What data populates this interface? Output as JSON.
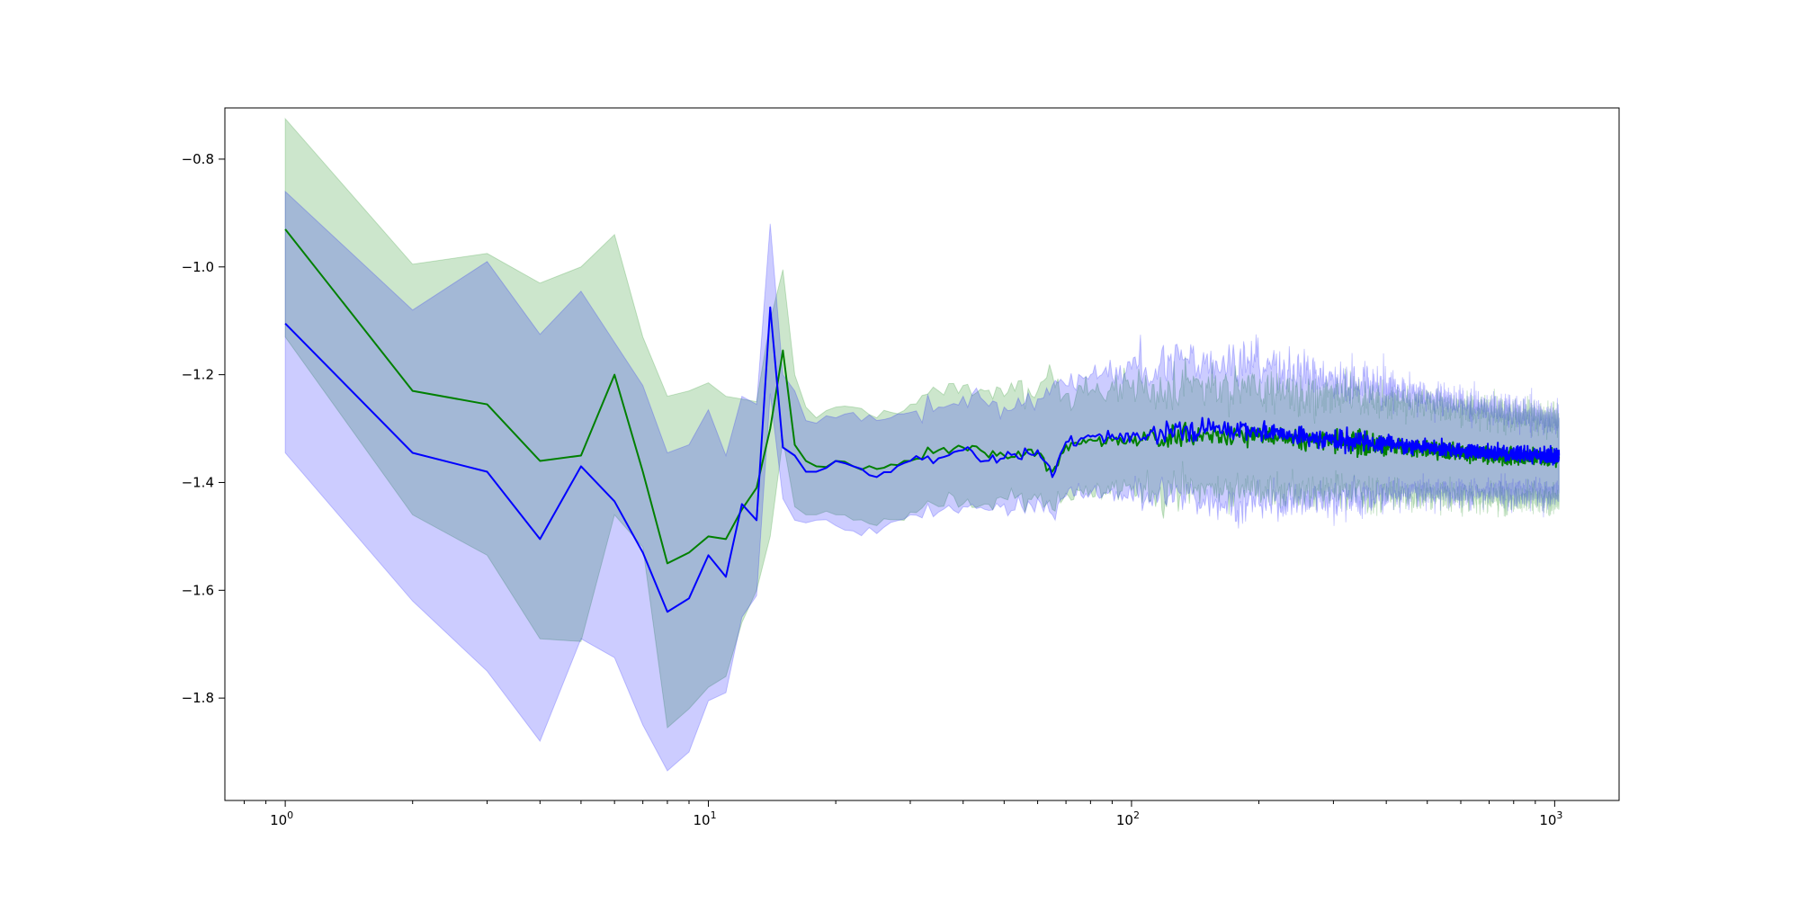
{
  "chart_data": {
    "type": "line",
    "title": "",
    "xlabel": "",
    "ylabel": "",
    "xscale": "log",
    "xlim": [
      0.72,
      1420
    ],
    "ylim": [
      -1.99,
      -0.705
    ],
    "grid": false,
    "legend": "none",
    "x_ticks": [
      {
        "value": 1,
        "base": "10",
        "exp": "0"
      },
      {
        "value": 10,
        "base": "10",
        "exp": "1"
      },
      {
        "value": 100,
        "base": "10",
        "exp": "2"
      },
      {
        "value": 1000,
        "base": "10",
        "exp": "3"
      }
    ],
    "y_ticks": [
      {
        "value": -0.8,
        "label": "−0.8"
      },
      {
        "value": -1.0,
        "label": "−1.0"
      },
      {
        "value": -1.2,
        "label": "−1.2"
      },
      {
        "value": -1.4,
        "label": "−1.4"
      },
      {
        "value": -1.6,
        "label": "−1.6"
      },
      {
        "value": -1.8,
        "label": "−1.8"
      }
    ],
    "series": [
      {
        "color": "#008000",
        "band_color": "#008000",
        "band_opacity": 0.2,
        "points": [
          {
            "x": 1,
            "y": -0.93,
            "lo": -1.13,
            "hi": -0.725
          },
          {
            "x": 2,
            "y": -1.23,
            "lo": -1.46,
            "hi": -0.995
          },
          {
            "x": 3,
            "y": -1.255,
            "lo": -1.535,
            "hi": -0.975
          },
          {
            "x": 4,
            "y": -1.36,
            "lo": -1.69,
            "hi": -1.03
          },
          {
            "x": 5,
            "y": -1.35,
            "lo": -1.695,
            "hi": -1.0
          },
          {
            "x": 6,
            "y": -1.2,
            "lo": -1.46,
            "hi": -0.94
          },
          {
            "x": 7,
            "y": -1.38,
            "lo": -1.52,
            "hi": -1.13
          },
          {
            "x": 8,
            "y": -1.55,
            "lo": -1.855,
            "hi": -1.24
          },
          {
            "x": 9,
            "y": -1.53,
            "lo": -1.82,
            "hi": -1.23
          },
          {
            "x": 10,
            "y": -1.5,
            "lo": -1.78,
            "hi": -1.215
          },
          {
            "x": 11,
            "y": -1.505,
            "lo": -1.76,
            "hi": -1.24
          },
          {
            "x": 12,
            "y": -1.45,
            "lo": -1.66,
            "hi": -1.245
          },
          {
            "x": 13,
            "y": -1.41,
            "lo": -1.6,
            "hi": -1.25
          },
          {
            "x": 14,
            "y": -1.3,
            "lo": -1.5,
            "hi": -1.1
          },
          {
            "x": 15,
            "y": -1.155,
            "lo": -1.32,
            "hi": -1.005
          },
          {
            "x": 16,
            "y": -1.33,
            "lo": -1.445,
            "hi": -1.2
          },
          {
            "x": 17,
            "y": -1.36,
            "lo": -1.46,
            "hi": -1.26
          },
          {
            "x": 18,
            "y": -1.37,
            "lo": -1.46,
            "hi": -1.28
          },
          {
            "x": 20,
            "y": -1.36,
            "lo": -1.46,
            "hi": -1.26
          },
          {
            "x": 22,
            "y": -1.37,
            "lo": -1.47,
            "hi": -1.26
          },
          {
            "x": 25,
            "y": -1.375,
            "lo": -1.48,
            "hi": -1.28
          },
          {
            "x": 30,
            "y": -1.36,
            "lo": -1.455,
            "hi": -1.255
          },
          {
            "x": 35,
            "y": -1.34,
            "lo": -1.445,
            "hi": -1.23
          },
          {
            "x": 40,
            "y": -1.335,
            "lo": -1.44,
            "hi": -1.22
          },
          {
            "x": 45,
            "y": -1.345,
            "lo": -1.44,
            "hi": -1.23
          },
          {
            "x": 50,
            "y": -1.35,
            "lo": -1.43,
            "hi": -1.24
          },
          {
            "x": 60,
            "y": -1.345,
            "lo": -1.43,
            "hi": -1.23
          },
          {
            "x": 65,
            "y": -1.38,
            "lo": -1.45,
            "hi": -1.2
          },
          {
            "x": 70,
            "y": -1.33,
            "lo": -1.42,
            "hi": -1.235
          },
          {
            "x": 80,
            "y": -1.32,
            "lo": -1.415,
            "hi": -1.23
          },
          {
            "x": 100,
            "y": -1.32,
            "lo": -1.415,
            "hi": -1.225
          },
          {
            "x": 150,
            "y": -1.31,
            "lo": -1.41,
            "hi": -1.215
          },
          {
            "x": 200,
            "y": -1.315,
            "lo": -1.41,
            "hi": -1.225
          },
          {
            "x": 300,
            "y": -1.325,
            "lo": -1.42,
            "hi": -1.24
          },
          {
            "x": 500,
            "y": -1.34,
            "lo": -1.425,
            "hi": -1.255
          },
          {
            "x": 700,
            "y": -1.35,
            "lo": -1.43,
            "hi": -1.27
          },
          {
            "x": 1024,
            "y": -1.355,
            "lo": -1.435,
            "hi": -1.28
          }
        ]
      },
      {
        "color": "#0000ff",
        "band_color": "#0000ff",
        "band_opacity": 0.2,
        "points": [
          {
            "x": 1,
            "y": -1.105,
            "lo": -1.345,
            "hi": -0.86
          },
          {
            "x": 2,
            "y": -1.345,
            "lo": -1.62,
            "hi": -1.08
          },
          {
            "x": 3,
            "y": -1.38,
            "lo": -1.75,
            "hi": -0.99
          },
          {
            "x": 4,
            "y": -1.505,
            "lo": -1.88,
            "hi": -1.125
          },
          {
            "x": 5,
            "y": -1.37,
            "lo": -1.69,
            "hi": -1.045
          },
          {
            "x": 6,
            "y": -1.435,
            "lo": -1.725,
            "hi": -1.14
          },
          {
            "x": 7,
            "y": -1.53,
            "lo": -1.85,
            "hi": -1.22
          },
          {
            "x": 8,
            "y": -1.64,
            "lo": -1.935,
            "hi": -1.345
          },
          {
            "x": 9,
            "y": -1.615,
            "lo": -1.9,
            "hi": -1.33
          },
          {
            "x": 10,
            "y": -1.535,
            "lo": -1.805,
            "hi": -1.265
          },
          {
            "x": 11,
            "y": -1.575,
            "lo": -1.79,
            "hi": -1.35
          },
          {
            "x": 12,
            "y": -1.44,
            "lo": -1.65,
            "hi": -1.24
          },
          {
            "x": 13,
            "y": -1.47,
            "lo": -1.61,
            "hi": -1.255
          },
          {
            "x": 14,
            "y": -1.075,
            "lo": -1.235,
            "hi": -0.92
          },
          {
            "x": 15,
            "y": -1.335,
            "lo": -1.43,
            "hi": -1.2
          },
          {
            "x": 16,
            "y": -1.35,
            "lo": -1.47,
            "hi": -1.23
          },
          {
            "x": 17,
            "y": -1.38,
            "lo": -1.475,
            "hi": -1.285
          },
          {
            "x": 18,
            "y": -1.38,
            "lo": -1.47,
            "hi": -1.29
          },
          {
            "x": 20,
            "y": -1.36,
            "lo": -1.48,
            "hi": -1.28
          },
          {
            "x": 22,
            "y": -1.37,
            "lo": -1.49,
            "hi": -1.27
          },
          {
            "x": 25,
            "y": -1.39,
            "lo": -1.495,
            "hi": -1.285
          },
          {
            "x": 30,
            "y": -1.36,
            "lo": -1.46,
            "hi": -1.27
          },
          {
            "x": 35,
            "y": -1.355,
            "lo": -1.455,
            "hi": -1.26
          },
          {
            "x": 40,
            "y": -1.34,
            "lo": -1.445,
            "hi": -1.24
          },
          {
            "x": 45,
            "y": -1.36,
            "lo": -1.45,
            "hi": -1.25
          },
          {
            "x": 50,
            "y": -1.355,
            "lo": -1.44,
            "hi": -1.26
          },
          {
            "x": 60,
            "y": -1.34,
            "lo": -1.43,
            "hi": -1.245
          },
          {
            "x": 65,
            "y": -1.39,
            "lo": -1.46,
            "hi": -1.22
          },
          {
            "x": 70,
            "y": -1.325,
            "lo": -1.425,
            "hi": -1.22
          },
          {
            "x": 80,
            "y": -1.315,
            "lo": -1.42,
            "hi": -1.2
          },
          {
            "x": 100,
            "y": -1.315,
            "lo": -1.425,
            "hi": -1.19
          },
          {
            "x": 150,
            "y": -1.3,
            "lo": -1.43,
            "hi": -1.17
          },
          {
            "x": 200,
            "y": -1.305,
            "lo": -1.44,
            "hi": -1.18
          },
          {
            "x": 300,
            "y": -1.32,
            "lo": -1.43,
            "hi": -1.21
          },
          {
            "x": 500,
            "y": -1.335,
            "lo": -1.42,
            "hi": -1.24
          },
          {
            "x": 700,
            "y": -1.345,
            "lo": -1.42,
            "hi": -1.26
          },
          {
            "x": 1024,
            "y": -1.35,
            "lo": -1.42,
            "hi": -1.28
          }
        ]
      }
    ]
  }
}
